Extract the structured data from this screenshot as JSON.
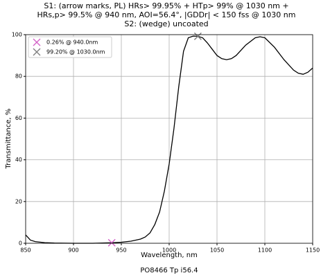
{
  "chart_data": {
    "type": "line",
    "title": [
      "S1: (arrow marks, PL) HRs> 99.95% + HTp> 99% @ 1030 nm +",
      "HRs,p> 99.5% @ 940 nm, AOI=56.4°, |GDDr| < 150 fss @ 1030 nm",
      "S2: (wedge) uncoated"
    ],
    "xlabel": "Wavelength, nm",
    "ylabel": "Transmittance, %",
    "footer": "PO8466 Tp i56.4",
    "x": [
      850,
      855,
      860,
      870,
      880,
      900,
      920,
      940,
      950,
      960,
      970,
      975,
      980,
      985,
      990,
      995,
      1000,
      1005,
      1010,
      1015,
      1020,
      1025,
      1030,
      1035,
      1040,
      1045,
      1050,
      1055,
      1060,
      1065,
      1070,
      1080,
      1090,
      1095,
      1100,
      1110,
      1120,
      1130,
      1135,
      1140,
      1145,
      1150
    ],
    "series": [
      {
        "color": "#000000",
        "values": [
          4,
          1.5,
          0.8,
          0.3,
          0.1,
          0,
          0,
          0.26,
          0.5,
          1,
          2,
          3,
          5,
          9,
          15,
          25,
          38,
          55,
          75,
          92,
          98.5,
          99.3,
          99.2,
          98.5,
          96,
          93,
          90,
          88.5,
          88,
          88.5,
          90,
          95,
          98.5,
          99,
          98.5,
          94,
          88,
          83,
          81.5,
          81,
          82,
          84
        ]
      }
    ],
    "markers": [
      {
        "name": "0.26% @ 940.0nm",
        "color": "#d462c8",
        "x": [
          940
        ],
        "values": [
          0.26
        ]
      },
      {
        "name": "99.20% @ 1030.0nm",
        "color": "#7f7f7f",
        "x": [
          1030
        ],
        "values": [
          99.2
        ]
      }
    ],
    "xlim": [
      850,
      1150
    ],
    "ylim": [
      0,
      100
    ],
    "xticks": [
      850,
      900,
      950,
      1000,
      1050,
      1100,
      1150
    ],
    "yticks": [
      0,
      20,
      40,
      60,
      80,
      100
    ],
    "grid": true,
    "legend": "upper left"
  }
}
